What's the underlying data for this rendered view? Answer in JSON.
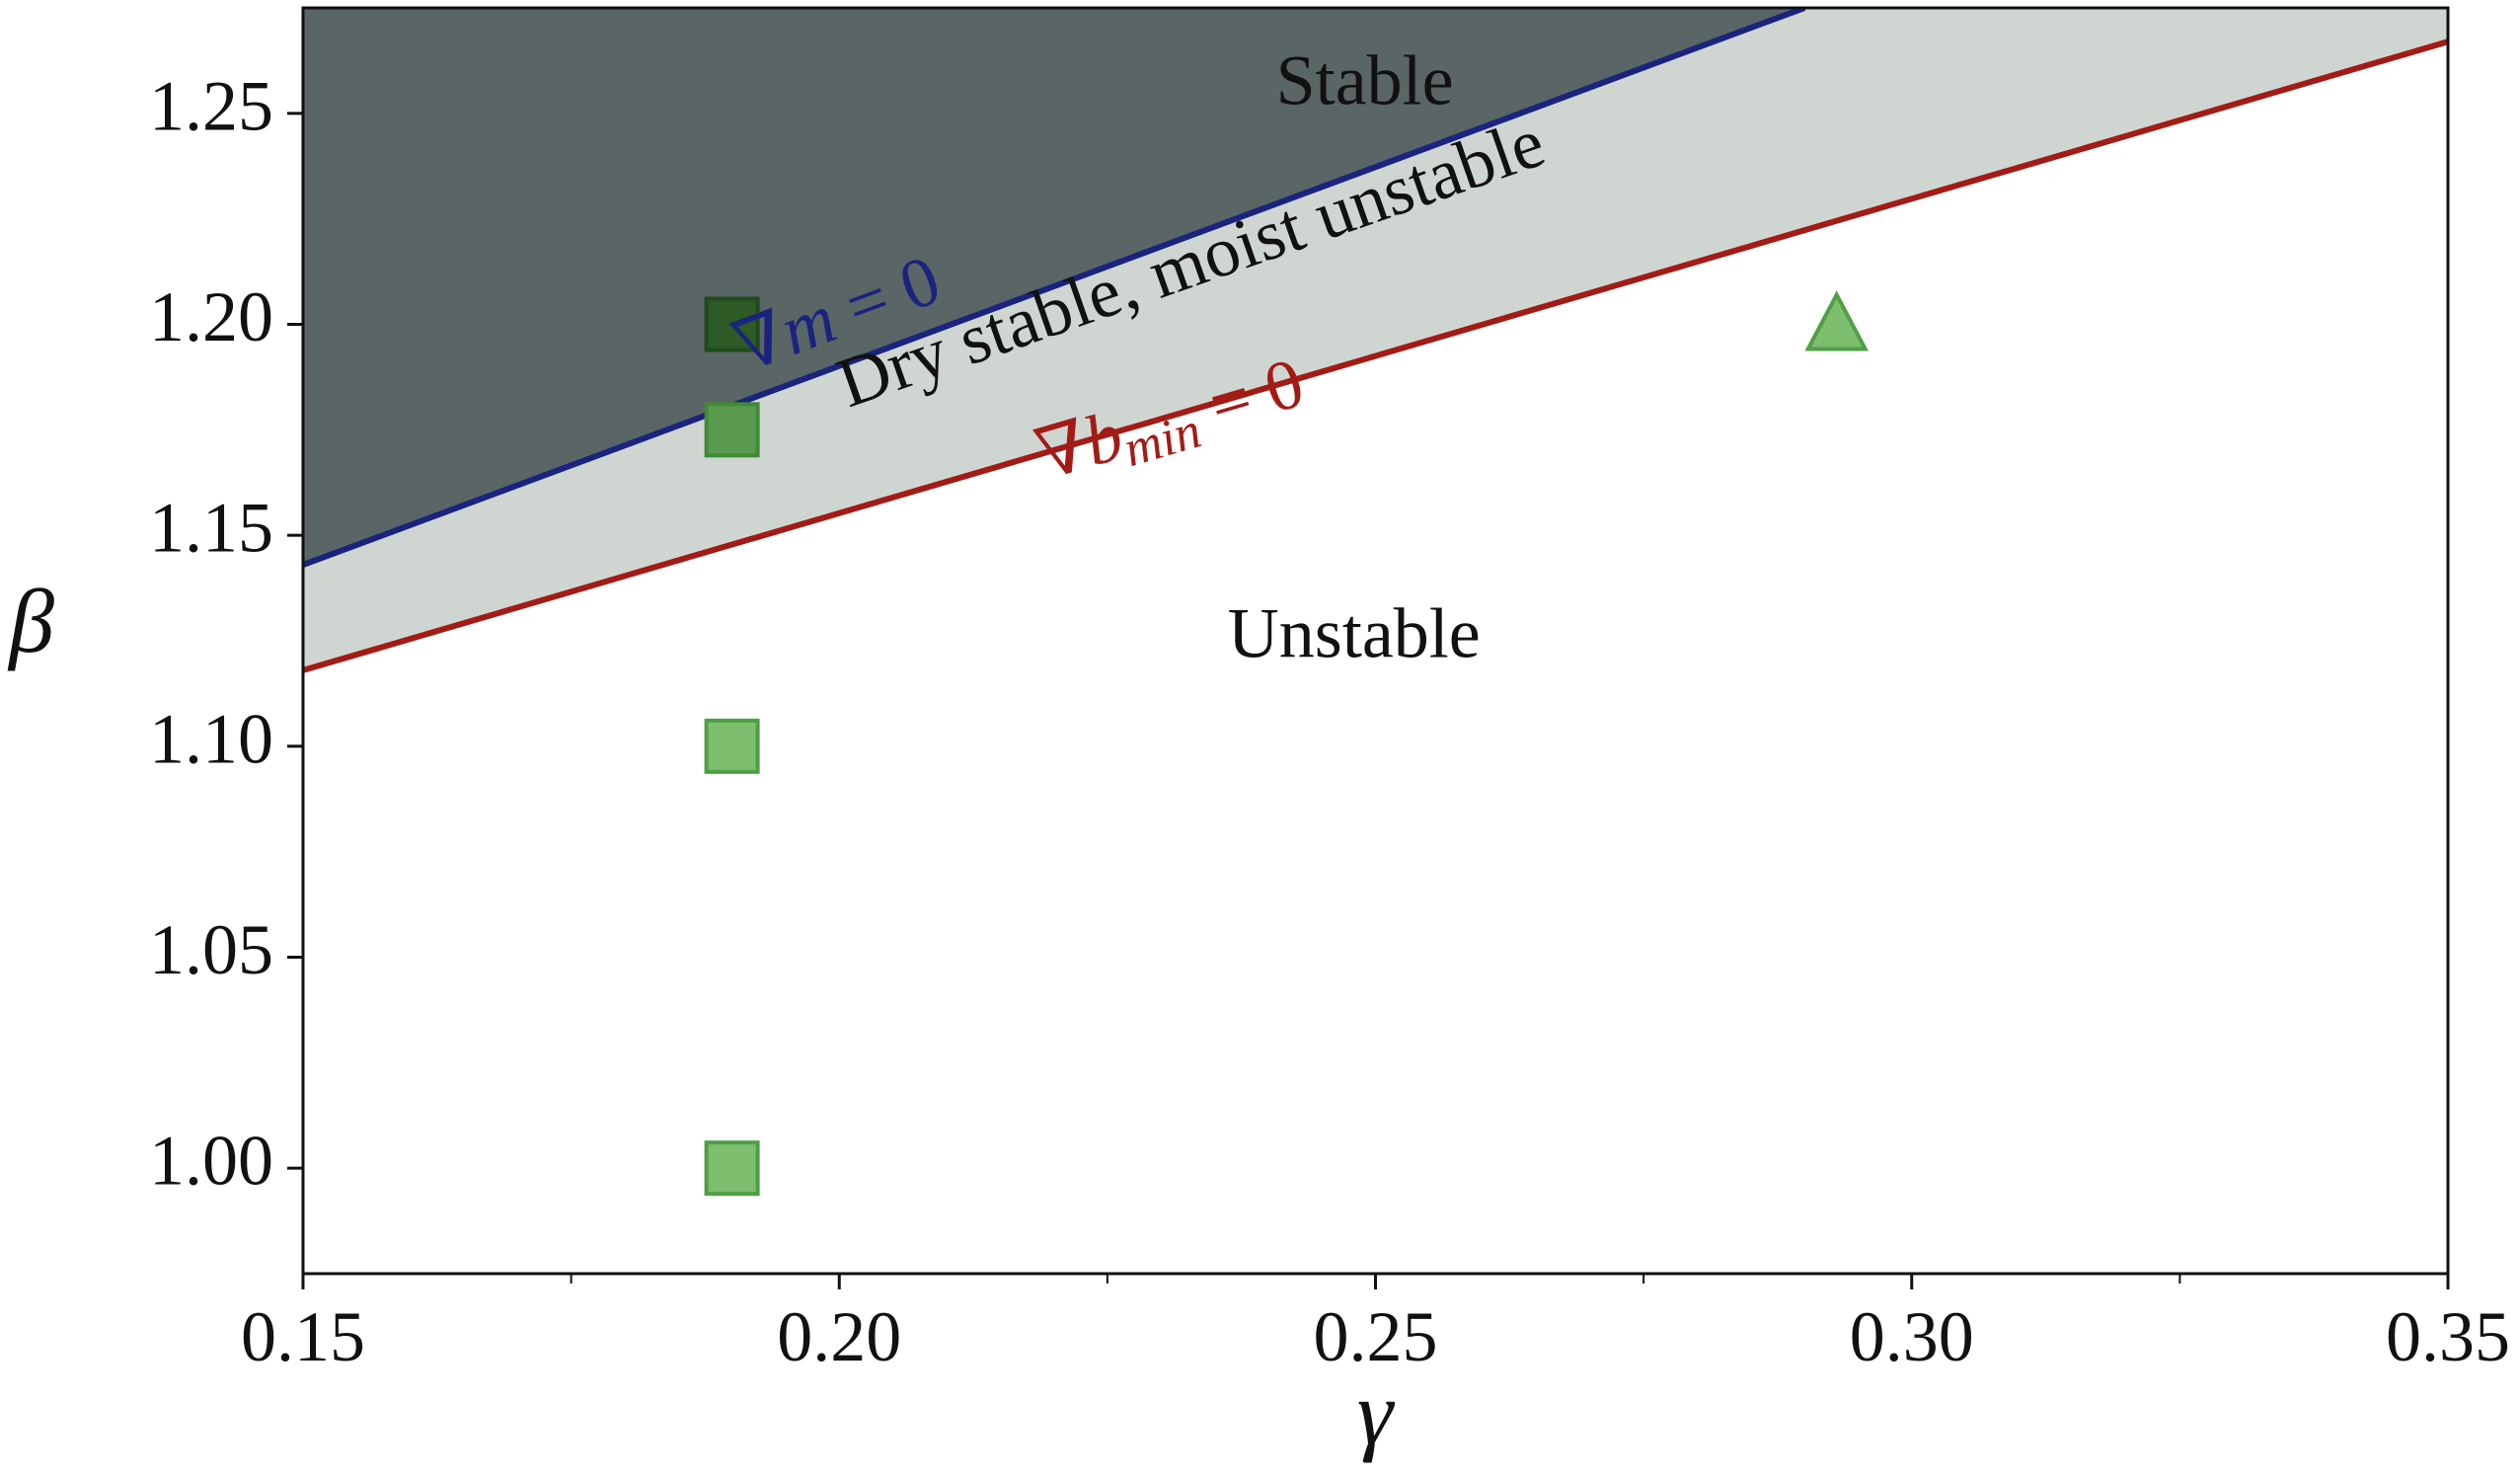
{
  "chart_data": {
    "type": "scatter",
    "title": "",
    "xlabel": "γ",
    "ylabel": "β",
    "xlim": [
      0.15,
      0.35
    ],
    "ylim": [
      0.975,
      1.275
    ],
    "x_ticks": [
      "0.15",
      "0.20",
      "0.25",
      "0.30",
      "0.35"
    ],
    "x_tick_values": [
      0.15,
      0.2,
      0.25,
      0.3,
      0.35
    ],
    "x_minor_tick_values": [
      0.175,
      0.225,
      0.275,
      0.325
    ],
    "y_ticks": [
      "1.00",
      "1.05",
      "1.10",
      "1.15",
      "1.20",
      "1.25"
    ],
    "y_tick_values": [
      1.0,
      1.05,
      1.1,
      1.15,
      1.2,
      1.25
    ],
    "grid": false,
    "legend": "none",
    "curves": [
      {
        "label_prefix": "∇",
        "label_var": "m",
        "label_sub": "",
        "label_suffix": " = 0",
        "x": [
          0.15,
          0.29
        ],
        "y": [
          1.143,
          1.275
        ],
        "color": "#1a237e",
        "label_x": 0.2,
        "label_y": 1.201
      },
      {
        "label_prefix": "∇",
        "label_var": "b",
        "label_sub": "min",
        "label_suffix": " = 0",
        "x": [
          0.15,
          0.35
        ],
        "y": [
          1.118,
          1.267
        ],
        "color": "#a31b15",
        "label_x": 0.231,
        "label_y": 1.176
      }
    ],
    "regions": [
      {
        "label": "Stable",
        "fill": "#5a6565",
        "label_x": 0.249,
        "label_y": 1.256
      },
      {
        "label": "Dry stable, moist unstable",
        "fill": "#cfd6d2",
        "label_x": 0.233,
        "label_y": 1.213
      },
      {
        "label": "Unstable",
        "fill": "#ffffff",
        "label_x": 0.248,
        "label_y": 1.125
      }
    ],
    "points": [
      {
        "x": 0.19,
        "y": 1.2,
        "marker": "square",
        "fill": "#2e5a26",
        "stroke": "#1f4a1c"
      },
      {
        "x": 0.19,
        "y": 1.175,
        "marker": "square",
        "fill": "#5a9a4e",
        "stroke": "#3f8a35"
      },
      {
        "x": 0.19,
        "y": 1.1,
        "marker": "square",
        "fill": "#7dbf6f",
        "stroke": "#4f9f45"
      },
      {
        "x": 0.19,
        "y": 1.0,
        "marker": "square",
        "fill": "#7dbf6f",
        "stroke": "#4f9f45"
      },
      {
        "x": 0.293,
        "y": 1.2,
        "marker": "triangle",
        "fill": "#7dbf6f",
        "stroke": "#4f9f45"
      }
    ]
  }
}
